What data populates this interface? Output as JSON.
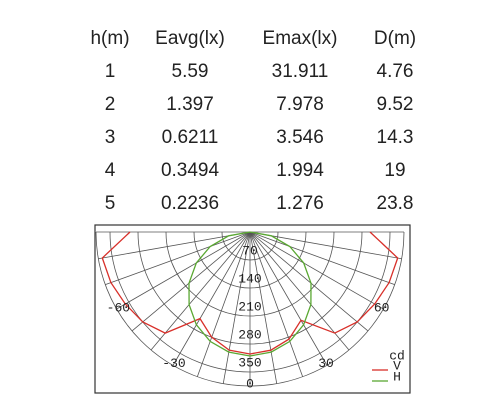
{
  "table": {
    "header": [
      "h(m)",
      "Eavg(lx)",
      "Emax(lx)",
      "D(m)"
    ],
    "rows": [
      [
        "1",
        "5.59",
        "31.911",
        "4.76"
      ],
      [
        "2",
        "1.397",
        "7.978",
        "9.52"
      ],
      [
        "3",
        "0.6211",
        "3.546",
        "14.3"
      ],
      [
        "4",
        "0.3494",
        "1.994",
        "19"
      ],
      [
        "5",
        "0.2236",
        "1.276",
        "23.8"
      ]
    ]
  },
  "chart_data": {
    "type": "polar",
    "unit": "cd",
    "angles": [
      -90,
      -80,
      -70,
      -60,
      -50,
      -40,
      -30,
      -20,
      -10,
      0,
      10,
      20,
      30,
      40,
      50,
      60,
      70,
      80,
      90
    ],
    "series": [
      {
        "name": "V",
        "color": "#d8302a",
        "values": [
          300,
          375,
          370,
          360,
          350,
          330,
          250,
          280,
          300,
          305,
          300,
          285,
          255,
          330,
          350,
          360,
          370,
          375,
          300
        ]
      },
      {
        "name": "H",
        "color": "#5aa832",
        "values": [
          0,
          54,
          106,
          155,
          199,
          237,
          268,
          291,
          305,
          310,
          305,
          291,
          268,
          237,
          199,
          155,
          106,
          54,
          0
        ]
      }
    ],
    "rlim": [
      0,
      385
    ],
    "rticks": [
      70,
      140,
      210,
      280,
      350
    ],
    "angle_ticks": [
      -60,
      -30,
      0,
      30,
      60
    ]
  }
}
